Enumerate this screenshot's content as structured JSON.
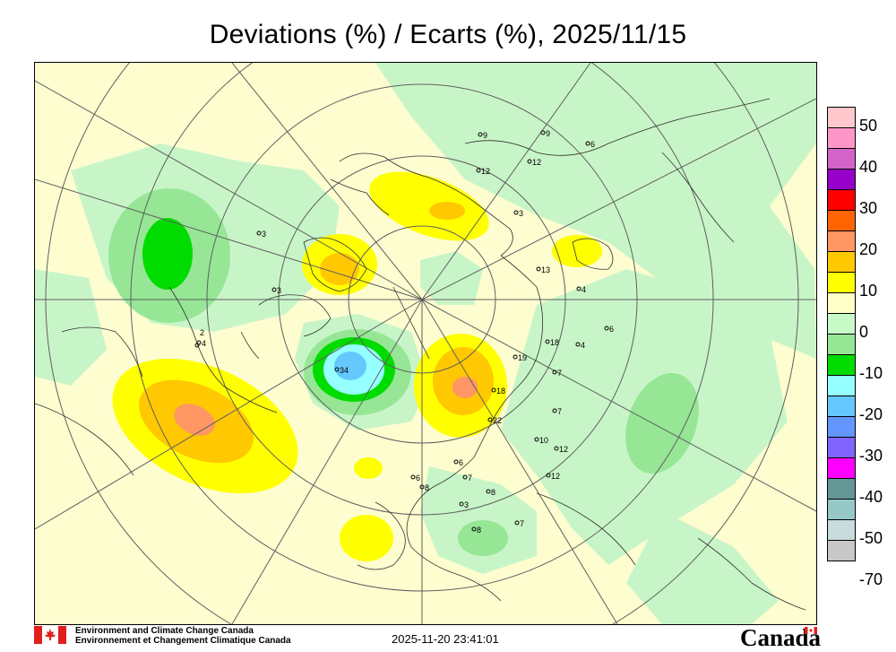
{
  "title": "Deviations (%) / Ecarts (%), 2025/11/15",
  "legend": {
    "colors": [
      "#ffc8cc",
      "#ff96c8",
      "#d264c8",
      "#9600c8",
      "#ff0000",
      "#ff6400",
      "#ff9664",
      "#ffc800",
      "#ffff00",
      "#ffffc8",
      "#c8fac8",
      "#96e696",
      "#00dc00",
      "#96ffff",
      "#64c8ff",
      "#6496ff",
      "#8264ff",
      "#ff00ff",
      "#649696",
      "#96c8c8",
      "#c8dcdc",
      "#c8c8c8"
    ],
    "labels": [
      "50",
      "40",
      "30",
      "20",
      "10",
      "0",
      "-10",
      "-20",
      "-30",
      "-40",
      "-50",
      "-70"
    ]
  },
  "stations": [
    "9",
    "9",
    "6",
    "12",
    "12",
    "3",
    "3",
    "3",
    "13",
    "4",
    "6",
    "18",
    "4",
    "4",
    "19",
    "7",
    "34",
    "18",
    "22",
    "7",
    "10",
    "12",
    "6",
    "6",
    "12",
    "7",
    "3",
    "8",
    "8",
    "8",
    "7",
    "2"
  ],
  "footer": {
    "agency_en": "Environment and Climate Change Canada",
    "agency_fr": "Environnement et Changement Climatique Canada",
    "timestamp": "2025-11-20 23:41:01",
    "wordmark": "Canada"
  }
}
